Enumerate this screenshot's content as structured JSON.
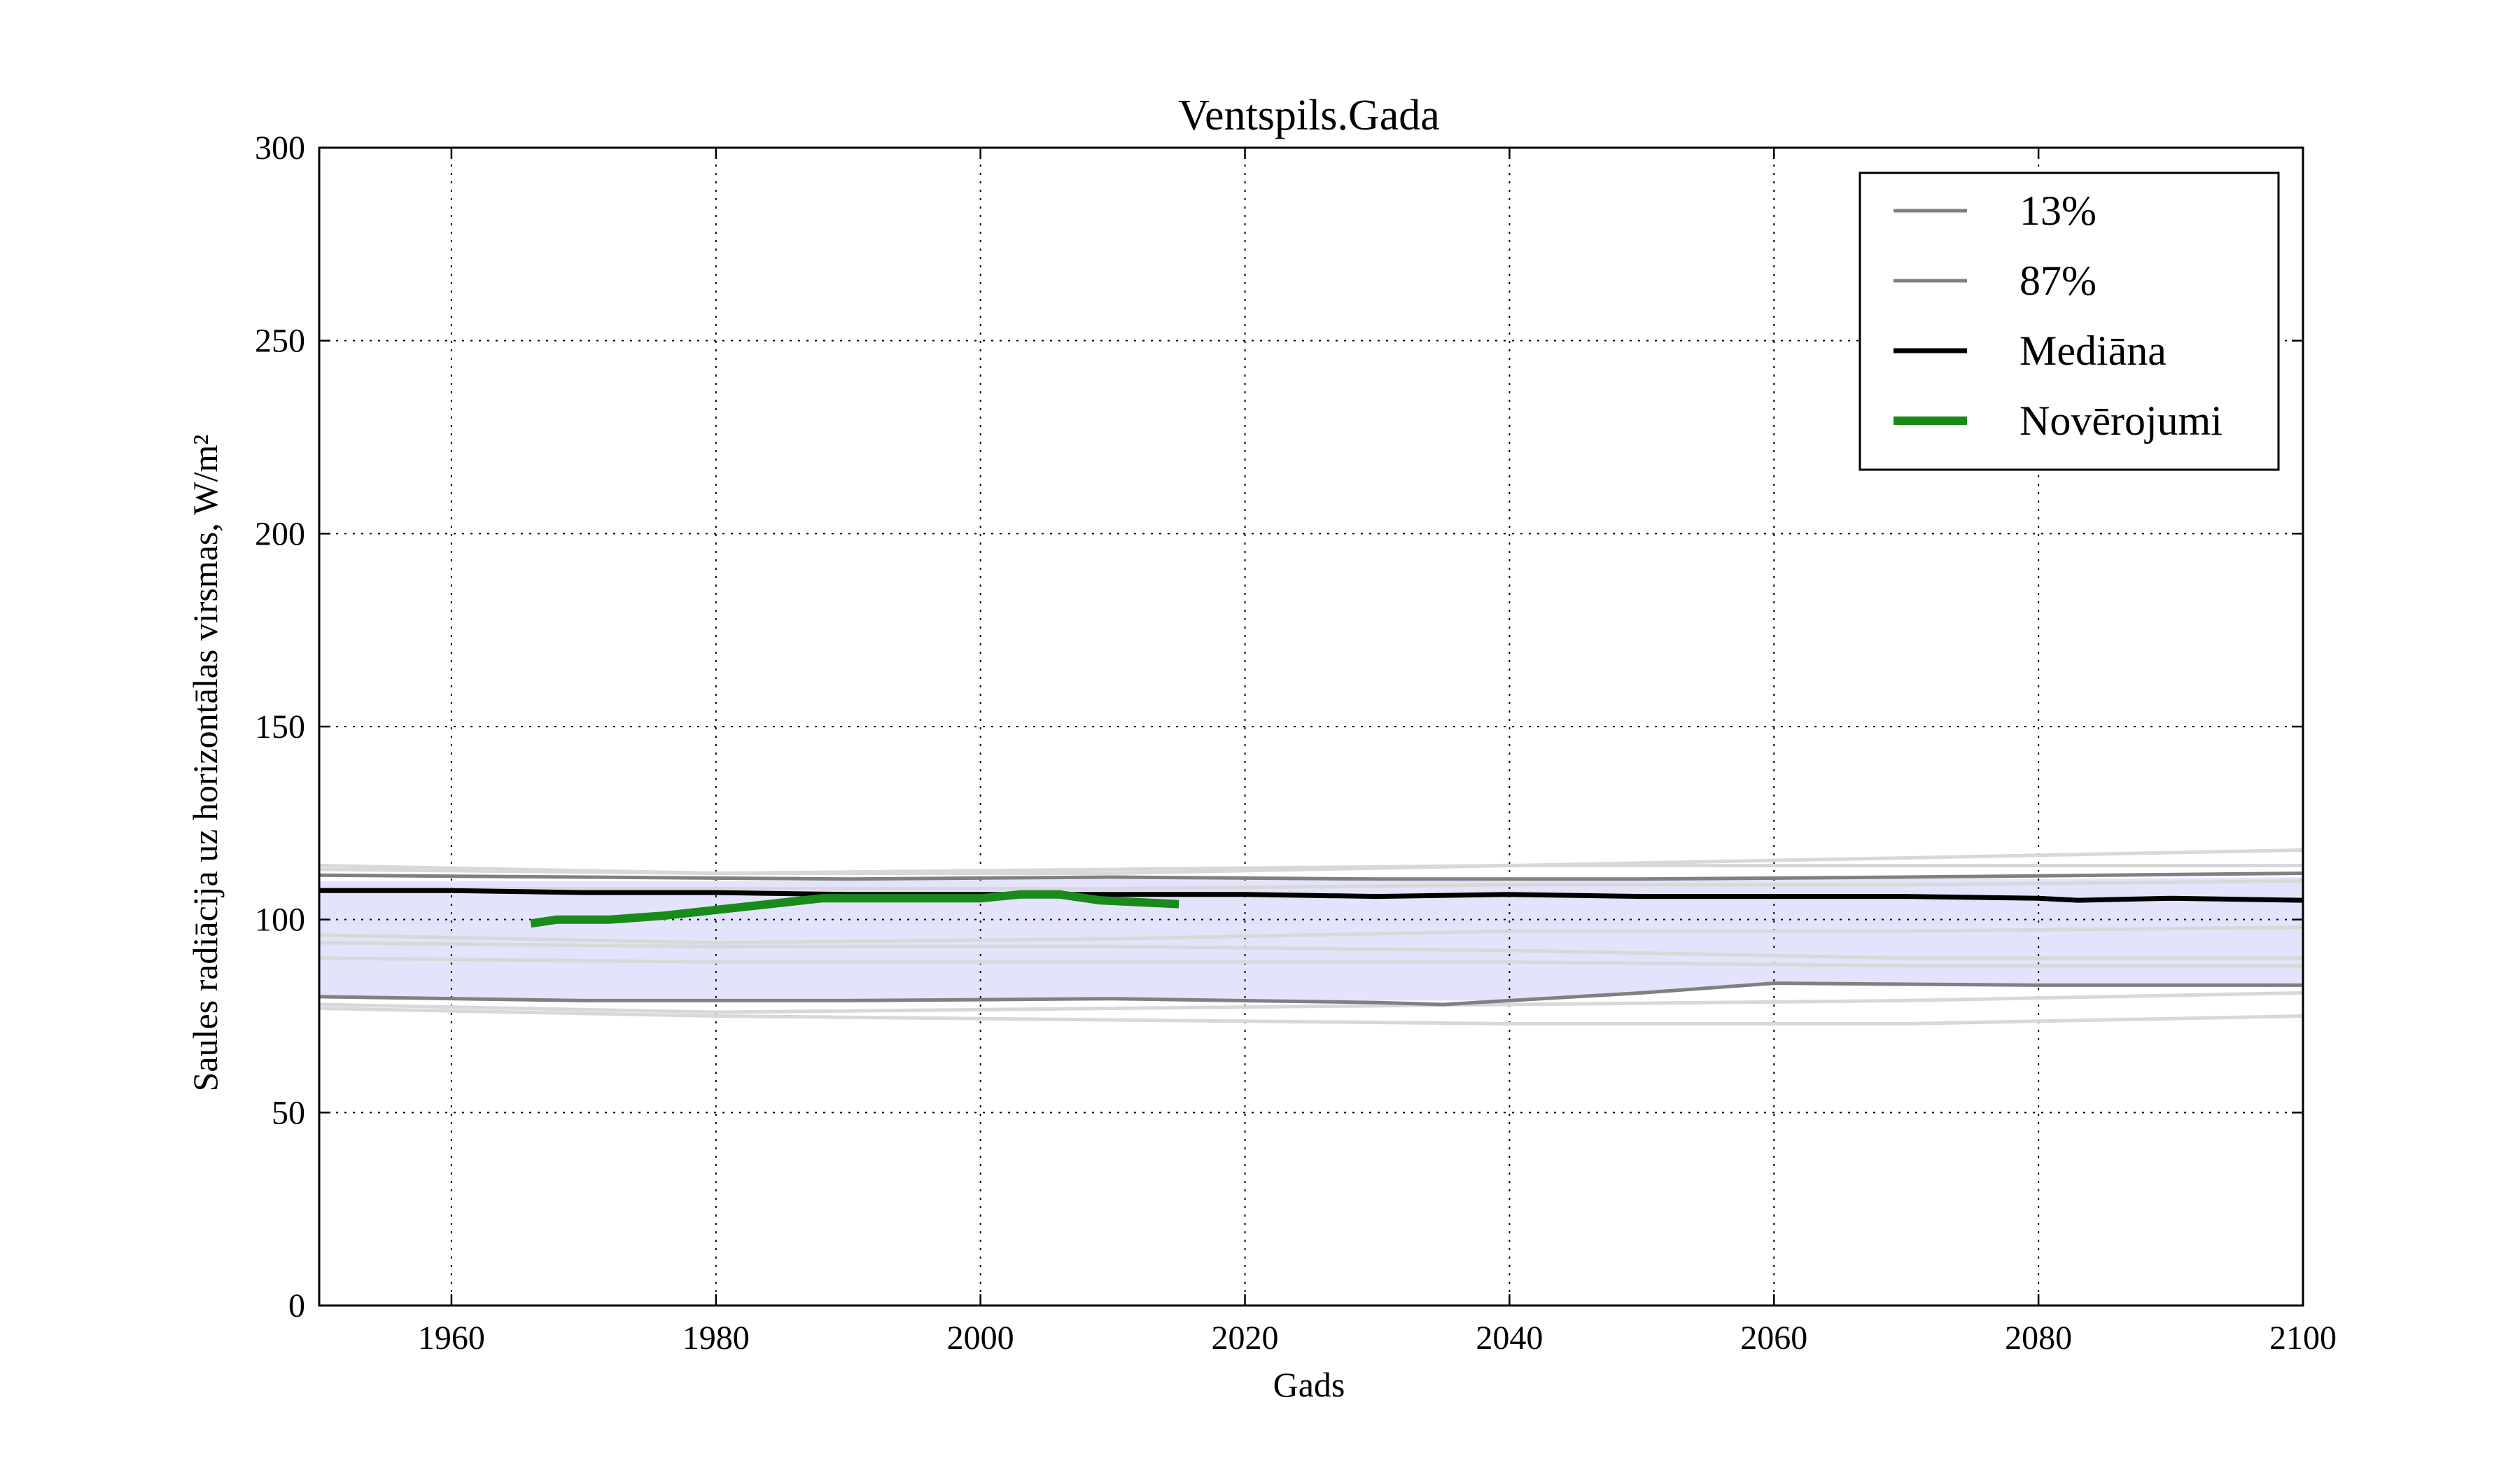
{
  "chart_data": {
    "type": "line",
    "title": "Ventspils.Gada",
    "xlabel": "Gads",
    "ylabel": "Saules radiācija uz horizontālas virsmas, W/m²",
    "xlim": [
      1950,
      2100
    ],
    "ylim": [
      0,
      300
    ],
    "xticks": [
      1960,
      1980,
      2000,
      2020,
      2040,
      2060,
      2080,
      2100
    ],
    "yticks": [
      0,
      50,
      100,
      150,
      200,
      250,
      300
    ],
    "grid": true,
    "legend": "top-right",
    "colors": {
      "band_fill": "#e3e3fc",
      "percentile_line": "#808080",
      "ensemble_line": "#d8d8d8",
      "median": "#000000",
      "observations": "#1a8a1a"
    },
    "band": {
      "x": [
        1950,
        1970,
        1990,
        2010,
        2030,
        2040,
        2050,
        2060,
        2080,
        2100
      ],
      "lower": [
        80,
        79,
        79,
        79.5,
        79,
        79,
        81,
        83.5,
        83,
        83
      ],
      "upper": [
        110,
        110,
        110,
        110.5,
        110,
        110,
        110.5,
        110.5,
        110.5,
        111
      ]
    },
    "series": [
      {
        "name": "13%",
        "x": [
          1950,
          1970,
          1990,
          2010,
          2030,
          2035,
          2040,
          2050,
          2060,
          2080,
          2100
        ],
        "values": [
          80,
          79,
          79,
          79.5,
          78.5,
          78,
          79,
          81,
          83.5,
          83,
          83
        ]
      },
      {
        "name": "87%",
        "x": [
          1950,
          1970,
          1990,
          2010,
          2030,
          2050,
          2070,
          2100
        ],
        "values": [
          111.5,
          111,
          110.5,
          111,
          110.5,
          110.5,
          111,
          112
        ]
      },
      {
        "name": "Mediāna",
        "x": [
          1950,
          1960,
          1970,
          1980,
          1990,
          2000,
          2010,
          2020,
          2030,
          2040,
          2050,
          2060,
          2070,
          2080,
          2083,
          2090,
          2100
        ],
        "values": [
          107.5,
          107.5,
          107,
          107,
          106.5,
          106.5,
          106.5,
          106.5,
          106,
          106.5,
          106,
          106,
          106,
          105.5,
          105,
          105.5,
          105
        ]
      },
      {
        "name": "Novērojumi",
        "x": [
          1966,
          1968,
          1972,
          1976,
          1980,
          1984,
          1988,
          1992,
          1996,
          2000,
          2003,
          2006,
          2009,
          2012,
          2015
        ],
        "values": [
          99,
          100,
          100,
          101,
          102.5,
          104,
          105.5,
          105.5,
          105.5,
          105.5,
          106.5,
          106.5,
          105,
          104.5,
          104
        ]
      }
    ],
    "ensemble": [
      {
        "x": [
          1950,
          1980,
          2010,
          2040,
          2070,
          2100
        ],
        "values": [
          114,
          112,
          113,
          114,
          116,
          118
        ]
      },
      {
        "x": [
          1950,
          1980,
          2010,
          2040,
          2070,
          2100
        ],
        "values": [
          113,
          112,
          112,
          114,
          114,
          114
        ]
      },
      {
        "x": [
          1950,
          1980,
          2010,
          2040,
          2070,
          2100
        ],
        "values": [
          108,
          108,
          108,
          109,
          109,
          110
        ]
      },
      {
        "x": [
          1950,
          1980,
          2010,
          2040,
          2070,
          2100
        ],
        "values": [
          96,
          94,
          95,
          97,
          97,
          98
        ]
      },
      {
        "x": [
          1950,
          1980,
          2010,
          2040,
          2070,
          2100
        ],
        "values": [
          94,
          93,
          93,
          92,
          90,
          90
        ]
      },
      {
        "x": [
          1950,
          1980,
          2010,
          2040,
          2070,
          2100
        ],
        "values": [
          90,
          89,
          89,
          89,
          88,
          88
        ]
      },
      {
        "x": [
          1950,
          1980,
          2010,
          2040,
          2070,
          2100
        ],
        "values": [
          78,
          76,
          77,
          78,
          79,
          81
        ]
      },
      {
        "x": [
          1950,
          1980,
          2010,
          2040,
          2070,
          2100
        ],
        "values": [
          77,
          75,
          74,
          73,
          73,
          75
        ]
      }
    ]
  }
}
